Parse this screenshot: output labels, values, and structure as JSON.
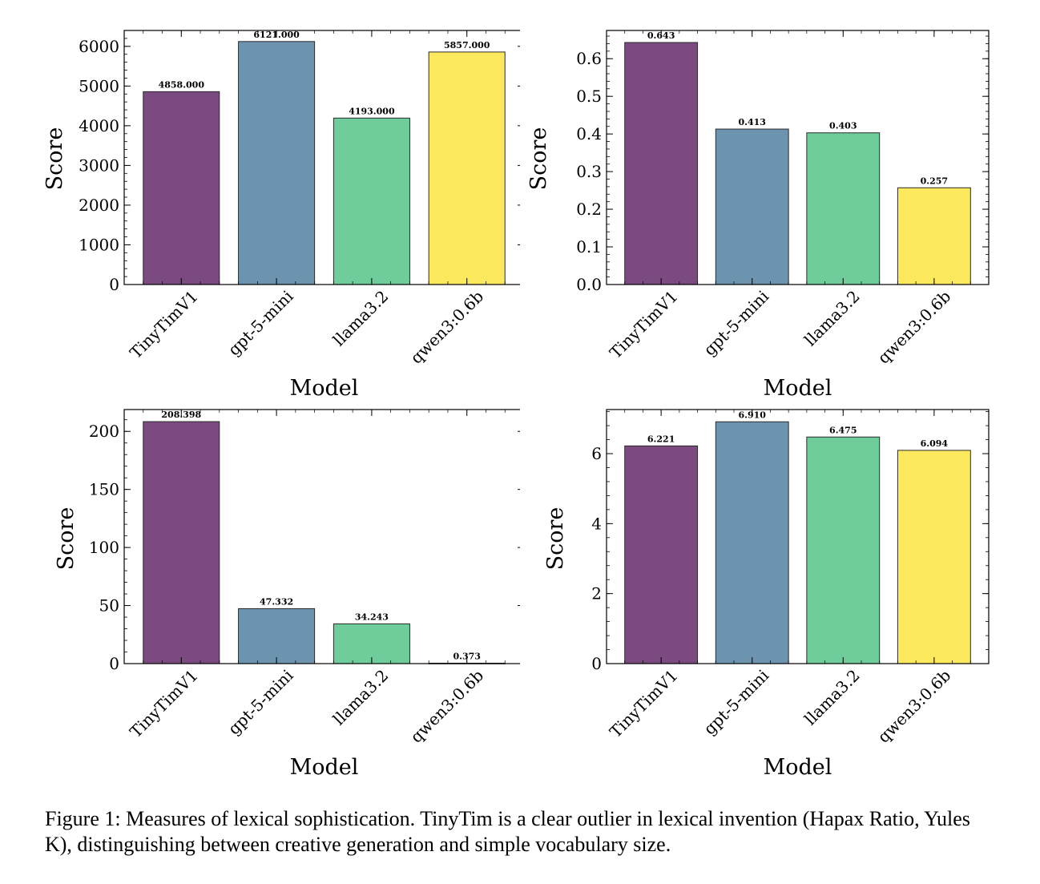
{
  "caption": "Figure 1: Measures of lexical sophistication. TinyTim is a clear outlier in lexical invention (Hapax Ratio, Yules K), distinguishing between creative generation and simple vocabulary size.",
  "colors": [
    "#7b4a80",
    "#6c94af",
    "#6fcd9b",
    "#fde95e"
  ],
  "chart_data": [
    {
      "type": "bar",
      "xlabel": "Model",
      "ylabel": "Score",
      "categories": [
        "TinyTimV1",
        "gpt-5-mini",
        "llama3.2",
        "qwen3:0.6b"
      ],
      "values": [
        4858.0,
        6121.0,
        4193.0,
        5857.0
      ],
      "value_labels": [
        "4858.000",
        "6121.000",
        "4193.000",
        "5857.000"
      ],
      "ylim": [
        0,
        6400
      ],
      "yticks": [
        0,
        1000,
        2000,
        3000,
        4000,
        5000,
        6000
      ],
      "ytick_labels": [
        "0",
        "1000",
        "2000",
        "3000",
        "4000",
        "5000",
        "6000"
      ],
      "grid": false
    },
    {
      "type": "bar",
      "xlabel": "Model",
      "ylabel": "Score",
      "categories": [
        "TinyTimV1",
        "gpt-5-mini",
        "llama3.2",
        "qwen3:0.6b"
      ],
      "values": [
        0.643,
        0.413,
        0.403,
        0.257
      ],
      "value_labels": [
        "0.643",
        "0.413",
        "0.403",
        "0.257"
      ],
      "ylim": [
        0,
        0.675
      ],
      "yticks": [
        0,
        0.1,
        0.2,
        0.3,
        0.4,
        0.5,
        0.6
      ],
      "ytick_labels": [
        "0.0",
        "0.1",
        "0.2",
        "0.3",
        "0.4",
        "0.5",
        "0.6"
      ],
      "grid": false
    },
    {
      "type": "bar",
      "xlabel": "Model",
      "ylabel": "Score",
      "categories": [
        "TinyTimV1",
        "gpt-5-mini",
        "llama3.2",
        "qwen3:0.6b"
      ],
      "values": [
        208.398,
        47.332,
        34.243,
        0.373
      ],
      "value_labels": [
        "208.398",
        "47.332",
        "34.243",
        "0.373"
      ],
      "ylim": [
        0,
        218.8
      ],
      "yticks": [
        0,
        50,
        100,
        150,
        200
      ],
      "ytick_labels": [
        "0",
        "50",
        "100",
        "150",
        "200"
      ],
      "grid": false
    },
    {
      "type": "bar",
      "xlabel": "Model",
      "ylabel": "Score",
      "categories": [
        "TinyTimV1",
        "gpt-5-mini",
        "llama3.2",
        "qwen3:0.6b"
      ],
      "values": [
        6.221,
        6.91,
        6.475,
        6.094
      ],
      "value_labels": [
        "6.221",
        "6.910",
        "6.475",
        "6.094"
      ],
      "ylim": [
        0,
        7.26
      ],
      "yticks": [
        0,
        2,
        4,
        6
      ],
      "ytick_labels": [
        "0",
        "2",
        "4",
        "6"
      ],
      "grid": false
    }
  ]
}
